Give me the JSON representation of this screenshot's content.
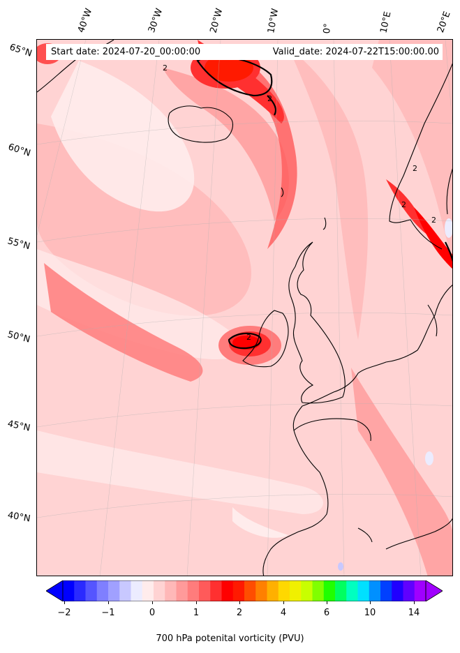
{
  "map": {
    "start_date_text": "Start date: 2024-07-20_00:00:00",
    "valid_date_text": "Valid_date: 2024-07-22T15:00:00.00",
    "lon_labels": [
      "40°W",
      "30°W",
      "20°W",
      "10°W",
      "0°",
      "10°E",
      "20°E"
    ],
    "lat_labels": [
      "65°N",
      "60°N",
      "55°N",
      "50°N",
      "45°N",
      "40°N"
    ],
    "contour_label": "2",
    "background_color": "#ffd3d3"
  },
  "colorbar": {
    "label": "700 hPa potenital vorticity (PVU)",
    "tick_labels": [
      "−2",
      "−1",
      "0",
      "1",
      "2",
      "4",
      "6",
      "10",
      "14"
    ],
    "colors": [
      "#0000ff",
      "#2a2aff",
      "#5555ff",
      "#7f7fff",
      "#a0a0ff",
      "#c8c8ff",
      "#ececff",
      "#ffecec",
      "#ffd3d3",
      "#ffb8b8",
      "#ff9a9a",
      "#ff7c7c",
      "#ff5a5a",
      "#ff3030",
      "#ff0000",
      "#ff1a00",
      "#ff4d00",
      "#ff8000",
      "#ffb000",
      "#ffd800",
      "#f0f000",
      "#c8ff00",
      "#80ff00",
      "#20ff00",
      "#00ff60",
      "#00ffc0",
      "#00e0ff",
      "#0090ff",
      "#0040ff",
      "#2000ff",
      "#6000ff",
      "#a000ff"
    ]
  }
}
